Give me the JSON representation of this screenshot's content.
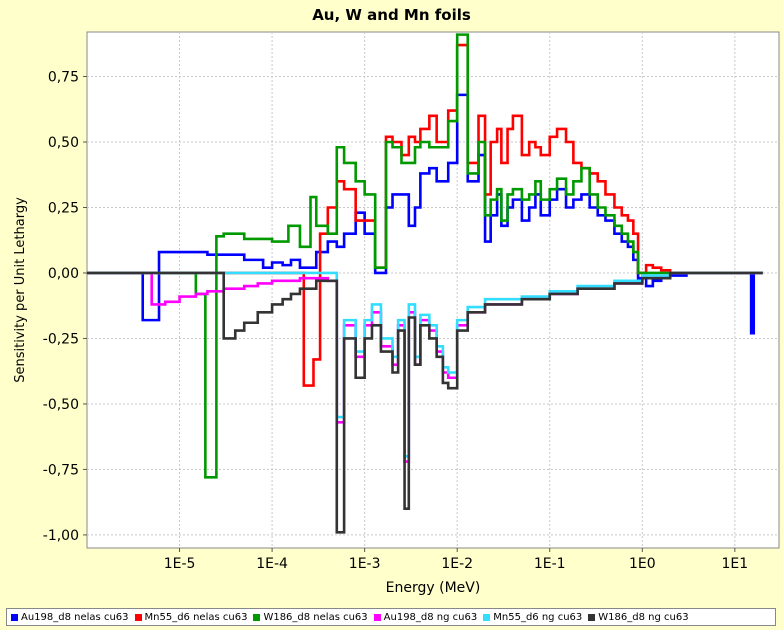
{
  "chart_data": {
    "type": "line",
    "title": "Au, W and Mn foils",
    "xlabel": "Energy (MeV)",
    "ylabel": "Sensitivity per Unit Lethargy",
    "x_scale": "log",
    "xlim": [
      1e-06,
      30
    ],
    "ylim": [
      -1.05,
      0.92
    ],
    "x_ticks": [
      1e-05,
      0.0001,
      0.001,
      0.01,
      0.1,
      1,
      10
    ],
    "x_tick_labels": [
      "1E-5",
      "1E-4",
      "1E-3",
      "1E-2",
      "1E-1",
      "1E0",
      "1E1"
    ],
    "y_ticks": [
      -1.0,
      -0.75,
      -0.5,
      -0.25,
      0.0,
      0.25,
      0.5,
      0.75
    ],
    "y_tick_labels": [
      "-1,00",
      "-0,75",
      "-0,50",
      "-0,25",
      "0,00",
      "0,25",
      "0,50",
      "0,75"
    ],
    "grid": true,
    "legend_position": "bottom",
    "series": [
      {
        "name": "Au198_d8 nelas cu63",
        "color": "#0000FF",
        "step": true,
        "x": [
          1e-06,
          3e-06,
          4e-06,
          6e-06,
          2e-05,
          5e-05,
          8e-05,
          0.0001,
          0.00013,
          0.00016,
          0.0002,
          0.00026,
          0.0003,
          0.0004,
          0.0005,
          0.0006,
          0.0008,
          0.001,
          0.0013,
          0.0017,
          0.002,
          0.0025,
          0.003,
          0.0035,
          0.004,
          0.005,
          0.006,
          0.008,
          0.01,
          0.013,
          0.017,
          0.02,
          0.023,
          0.027,
          0.03,
          0.035,
          0.04,
          0.05,
          0.06,
          0.07,
          0.08,
          0.1,
          0.12,
          0.15,
          0.18,
          0.22,
          0.27,
          0.33,
          0.4,
          0.5,
          0.6,
          0.7,
          0.8,
          0.9,
          1.1,
          1.3,
          1.6,
          2,
          3,
          5,
          10,
          15,
          16,
          17,
          20
        ],
        "y": [
          0.0,
          0.0,
          -0.18,
          0.08,
          0.07,
          0.05,
          0.02,
          0.04,
          0.03,
          0.05,
          0.02,
          0.02,
          0.08,
          0.12,
          0.1,
          0.15,
          0.23,
          0.15,
          0.0,
          0.25,
          0.3,
          0.3,
          0.18,
          0.25,
          0.38,
          0.4,
          0.35,
          0.42,
          0.68,
          0.35,
          0.45,
          0.12,
          0.22,
          0.3,
          0.18,
          0.25,
          0.28,
          0.2,
          0.25,
          0.3,
          0.22,
          0.28,
          0.32,
          0.25,
          0.28,
          0.3,
          0.25,
          0.22,
          0.2,
          0.15,
          0.12,
          0.1,
          0.05,
          -0.02,
          -0.05,
          -0.03,
          -0.02,
          -0.01,
          0.0,
          0.0,
          0.0,
          -0.23,
          0.0,
          0.0,
          0.0
        ]
      },
      {
        "name": "Mn55_d6 nelas cu63",
        "color": "#FF0000",
        "step": true,
        "x": [
          1e-06,
          3e-06,
          1e-05,
          3e-05,
          0.0001,
          0.0002,
          0.00022,
          0.00028,
          0.00033,
          0.0004,
          0.0005,
          0.0006,
          0.0008,
          0.001,
          0.0013,
          0.0017,
          0.002,
          0.0025,
          0.003,
          0.0035,
          0.004,
          0.005,
          0.006,
          0.008,
          0.01,
          0.013,
          0.017,
          0.02,
          0.023,
          0.027,
          0.03,
          0.035,
          0.04,
          0.05,
          0.06,
          0.07,
          0.08,
          0.1,
          0.12,
          0.15,
          0.18,
          0.22,
          0.27,
          0.33,
          0.4,
          0.5,
          0.6,
          0.7,
          0.8,
          0.9,
          1.1,
          1.3,
          1.6,
          2,
          5,
          20
        ],
        "y": [
          0.0,
          0.0,
          0.0,
          0.0,
          0.0,
          0.0,
          -0.43,
          -0.33,
          0.15,
          0.25,
          0.35,
          0.32,
          0.2,
          0.2,
          0.02,
          0.52,
          0.5,
          0.45,
          0.52,
          0.5,
          0.55,
          0.6,
          0.5,
          0.62,
          0.87,
          0.42,
          0.6,
          0.3,
          0.5,
          0.55,
          0.42,
          0.55,
          0.6,
          0.45,
          0.5,
          0.48,
          0.45,
          0.52,
          0.55,
          0.5,
          0.42,
          0.4,
          0.38,
          0.35,
          0.3,
          0.25,
          0.22,
          0.2,
          0.15,
          0.0,
          0.03,
          0.02,
          0.01,
          0.0,
          0.0,
          0.0
        ]
      },
      {
        "name": "W186_d8 nelas cu63",
        "color": "#009900",
        "step": true,
        "x": [
          1e-06,
          5e-06,
          1.5e-05,
          1.9e-05,
          2.5e-05,
          3e-05,
          5e-05,
          0.0001,
          0.00015,
          0.0002,
          0.00026,
          0.0003,
          0.0004,
          0.0005,
          0.0006,
          0.0008,
          0.001,
          0.0013,
          0.0017,
          0.002,
          0.0025,
          0.003,
          0.0035,
          0.004,
          0.005,
          0.006,
          0.008,
          0.01,
          0.013,
          0.017,
          0.02,
          0.023,
          0.027,
          0.03,
          0.035,
          0.04,
          0.05,
          0.06,
          0.07,
          0.08,
          0.1,
          0.12,
          0.15,
          0.18,
          0.22,
          0.27,
          0.33,
          0.4,
          0.5,
          0.6,
          0.7,
          0.8,
          0.9,
          1.1,
          2,
          20
        ],
        "y": [
          0.0,
          0.0,
          -0.08,
          -0.78,
          0.14,
          0.15,
          0.13,
          0.12,
          0.18,
          0.1,
          0.29,
          0.18,
          0.15,
          0.48,
          0.42,
          0.35,
          0.3,
          0.02,
          0.5,
          0.48,
          0.42,
          0.42,
          0.48,
          0.5,
          0.48,
          0.48,
          0.58,
          0.91,
          0.38,
          0.5,
          0.22,
          0.28,
          0.32,
          0.2,
          0.3,
          0.32,
          0.28,
          0.3,
          0.35,
          0.28,
          0.32,
          0.36,
          0.3,
          0.35,
          0.4,
          0.3,
          0.25,
          0.22,
          0.18,
          0.15,
          0.12,
          0.08,
          0.0,
          0.0,
          0.0,
          0.0
        ]
      },
      {
        "name": "Au198_d8 ng cu63",
        "color": "#FF00FF",
        "step": true,
        "x": [
          1e-06,
          3e-06,
          5e-06,
          7e-06,
          1e-05,
          1.5e-05,
          2e-05,
          3e-05,
          5e-05,
          7e-05,
          0.0001,
          0.00015,
          0.0002,
          0.0003,
          0.0004,
          0.0005,
          0.0006,
          0.0008,
          0.001,
          0.0012,
          0.0015,
          0.002,
          0.0023,
          0.0027,
          0.003,
          0.0035,
          0.004,
          0.005,
          0.006,
          0.007,
          0.008,
          0.01,
          0.013,
          0.02,
          0.05,
          0.1,
          0.2,
          0.5,
          1,
          2,
          20
        ],
        "y": [
          0.0,
          0.0,
          -0.12,
          -0.11,
          -0.09,
          -0.08,
          -0.07,
          -0.06,
          -0.05,
          -0.04,
          -0.03,
          -0.03,
          -0.02,
          -0.02,
          -0.03,
          -0.57,
          -0.2,
          -0.32,
          -0.2,
          -0.15,
          -0.28,
          -0.35,
          -0.2,
          -0.72,
          -0.15,
          -0.35,
          -0.18,
          -0.22,
          -0.3,
          -0.38,
          -0.4,
          -0.2,
          -0.15,
          -0.12,
          -0.1,
          -0.08,
          -0.06,
          -0.04,
          -0.02,
          0.0,
          0.0
        ]
      },
      {
        "name": "Mn55_d6 ng cu63",
        "color": "#33DDFF",
        "step": true,
        "x": [
          1e-06,
          0.0005,
          0.0006,
          0.0008,
          0.001,
          0.0012,
          0.0015,
          0.002,
          0.0023,
          0.0027,
          0.003,
          0.0035,
          0.004,
          0.005,
          0.006,
          0.007,
          0.008,
          0.01,
          0.013,
          0.02,
          0.05,
          0.1,
          0.2,
          0.5,
          1,
          2,
          20
        ],
        "y": [
          0.0,
          -0.55,
          -0.18,
          -0.3,
          -0.18,
          -0.12,
          -0.25,
          -0.32,
          -0.18,
          -0.7,
          -0.12,
          -0.32,
          -0.16,
          -0.2,
          -0.28,
          -0.36,
          -0.38,
          -0.18,
          -0.13,
          -0.1,
          -0.09,
          -0.07,
          -0.05,
          -0.03,
          -0.01,
          0.0,
          0.0
        ]
      },
      {
        "name": "W186_d8 ng cu63",
        "color": "#333333",
        "step": true,
        "x": [
          1e-06,
          5e-06,
          8e-06,
          1.2e-05,
          1.6e-05,
          2e-05,
          3e-05,
          4e-05,
          5e-05,
          7e-05,
          0.0001,
          0.00013,
          0.00016,
          0.0002,
          0.0003,
          0.0005,
          0.0006,
          0.0008,
          0.001,
          0.0012,
          0.0015,
          0.002,
          0.0023,
          0.0027,
          0.003,
          0.0035,
          0.004,
          0.005,
          0.006,
          0.007,
          0.008,
          0.01,
          0.013,
          0.02,
          0.05,
          0.1,
          0.2,
          0.5,
          1,
          2,
          20
        ],
        "y": [
          0.0,
          0.0,
          0.0,
          0.0,
          0.0,
          0.0,
          -0.25,
          -0.22,
          -0.19,
          -0.15,
          -0.12,
          -0.1,
          -0.08,
          -0.06,
          -0.03,
          -0.99,
          -0.25,
          -0.4,
          -0.25,
          -0.2,
          -0.3,
          -0.38,
          -0.22,
          -0.9,
          -0.17,
          -0.35,
          -0.2,
          -0.25,
          -0.32,
          -0.42,
          -0.44,
          -0.22,
          -0.15,
          -0.12,
          -0.1,
          -0.08,
          -0.06,
          -0.04,
          -0.02,
          0.0,
          0.0
        ]
      }
    ]
  }
}
